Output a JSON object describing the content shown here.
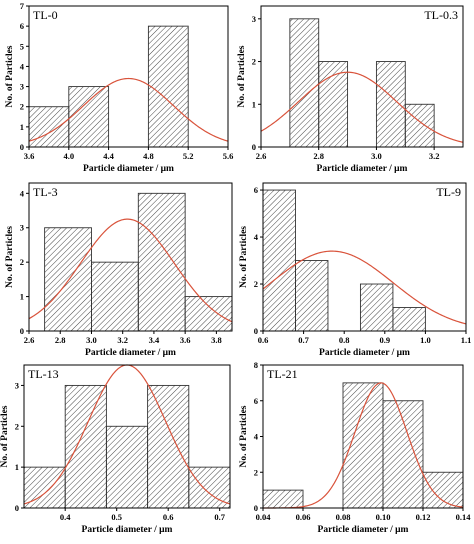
{
  "figure": {
    "fit_curve_color": "#d9533b",
    "bar_hatch_color": "#333333"
  },
  "chart_data": [
    {
      "type": "bar",
      "title": "TL-0",
      "xlabel": "Particle diameter / μm",
      "ylabel": "No. of Particles",
      "xlim": [
        3.6,
        5.6
      ],
      "ylim": [
        0,
        7
      ],
      "xticks": [
        "3.6",
        "4.0",
        "4.4",
        "4.8",
        "5.2",
        "5.6"
      ],
      "yticks": [
        "0",
        "1",
        "2",
        "3",
        "4",
        "5",
        "6",
        "7"
      ],
      "bins": [
        {
          "x0": 3.6,
          "x1": 4.0,
          "count": 2
        },
        {
          "x0": 4.0,
          "x1": 4.4,
          "count": 3
        },
        {
          "x0": 4.4,
          "x1": 4.8,
          "count": 0
        },
        {
          "x0": 4.8,
          "x1": 5.2,
          "count": 6
        }
      ],
      "fit": {
        "mean": 4.6,
        "sd": 0.45,
        "peak": 3.4
      }
    },
    {
      "type": "bar",
      "title": "TL-0.3",
      "xlabel": "Particle diameter / μm",
      "ylabel": "No. of Particles",
      "xlim": [
        2.6,
        3.3
      ],
      "ylim": [
        0,
        3.3
      ],
      "xticks": [
        "2.6",
        "2.8",
        "3.0",
        "3.2"
      ],
      "yticks": [
        "0",
        "1",
        "2",
        "3"
      ],
      "bins": [
        {
          "x0": 2.7,
          "x1": 2.8,
          "count": 3
        },
        {
          "x0": 2.8,
          "x1": 2.9,
          "count": 2
        },
        {
          "x0": 2.9,
          "x1": 3.0,
          "count": 0
        },
        {
          "x0": 3.0,
          "x1": 3.1,
          "count": 2
        },
        {
          "x0": 3.1,
          "x1": 3.2,
          "count": 1
        }
      ],
      "fit": {
        "mean": 2.9,
        "sd": 0.17,
        "peak": 1.75
      }
    },
    {
      "type": "bar",
      "title": "TL-3",
      "xlabel": "Particle diameter / μm",
      "ylabel": "No. of Particles",
      "xlim": [
        2.6,
        3.9
      ],
      "ylim": [
        0,
        4.3
      ],
      "xticks": [
        "2.6",
        "2.8",
        "3.0",
        "3.2",
        "3.4",
        "3.6",
        "3.8"
      ],
      "yticks": [
        "0",
        "1",
        "2",
        "3",
        "4"
      ],
      "bins": [
        {
          "x0": 2.7,
          "x1": 3.0,
          "count": 3
        },
        {
          "x0": 3.0,
          "x1": 3.3,
          "count": 2
        },
        {
          "x0": 3.3,
          "x1": 3.6,
          "count": 4
        },
        {
          "x0": 3.6,
          "x1": 3.9,
          "count": 1
        }
      ],
      "fit": {
        "mean": 3.23,
        "sd": 0.3,
        "peak": 3.25
      }
    },
    {
      "type": "bar",
      "title": "TL-9",
      "xlabel": "Particle diameter / μm",
      "ylabel": "No. of Particles",
      "xlim": [
        0.6,
        1.1
      ],
      "ylim": [
        0,
        6.3
      ],
      "xticks": [
        "0.6",
        "0.7",
        "0.8",
        "0.9",
        "1.0",
        "1.1"
      ],
      "yticks": [
        "0",
        "2",
        "4",
        "6"
      ],
      "bins": [
        {
          "x0": 0.6,
          "x1": 0.68,
          "count": 6
        },
        {
          "x0": 0.68,
          "x1": 0.76,
          "count": 3
        },
        {
          "x0": 0.76,
          "x1": 0.84,
          "count": 0
        },
        {
          "x0": 0.84,
          "x1": 0.92,
          "count": 2
        },
        {
          "x0": 0.92,
          "x1": 1.0,
          "count": 1
        }
      ],
      "fit": {
        "mean": 0.77,
        "sd": 0.15,
        "peak": 3.4
      }
    },
    {
      "type": "bar",
      "title": "TL-13",
      "xlabel": "Particle diameter / μm",
      "ylabel": "No. of Particles",
      "xlim": [
        0.32,
        0.72
      ],
      "ylim": [
        0,
        3.5
      ],
      "xticks": [
        "0.4",
        "0.5",
        "0.6",
        "0.7"
      ],
      "yticks": [
        "0",
        "1",
        "2",
        "3"
      ],
      "bins": [
        {
          "x0": 0.32,
          "x1": 0.4,
          "count": 1
        },
        {
          "x0": 0.4,
          "x1": 0.48,
          "count": 3
        },
        {
          "x0": 0.48,
          "x1": 0.56,
          "count": 2
        },
        {
          "x0": 0.56,
          "x1": 0.64,
          "count": 3
        },
        {
          "x0": 0.64,
          "x1": 0.72,
          "count": 1
        }
      ],
      "fit": {
        "mean": 0.52,
        "sd": 0.075,
        "peak": 3.5
      }
    },
    {
      "type": "bar",
      "title": "TL-21",
      "xlabel": "Particle diameter / μm",
      "ylabel": "No. of Particles",
      "xlim": [
        0.04,
        0.14
      ],
      "ylim": [
        0,
        8
      ],
      "xticks": [
        "0.04",
        "0.06",
        "0.08",
        "0.10",
        "0.12",
        "0.14"
      ],
      "yticks": [
        "0",
        "2",
        "4",
        "6",
        "8"
      ],
      "bins": [
        {
          "x0": 0.04,
          "x1": 0.06,
          "count": 1
        },
        {
          "x0": 0.06,
          "x1": 0.08,
          "count": 0
        },
        {
          "x0": 0.08,
          "x1": 0.1,
          "count": 7
        },
        {
          "x0": 0.1,
          "x1": 0.12,
          "count": 6
        },
        {
          "x0": 0.12,
          "x1": 0.14,
          "count": 2
        }
      ],
      "fit": {
        "mean": 0.099,
        "sd": 0.013,
        "peak": 7
      }
    }
  ]
}
